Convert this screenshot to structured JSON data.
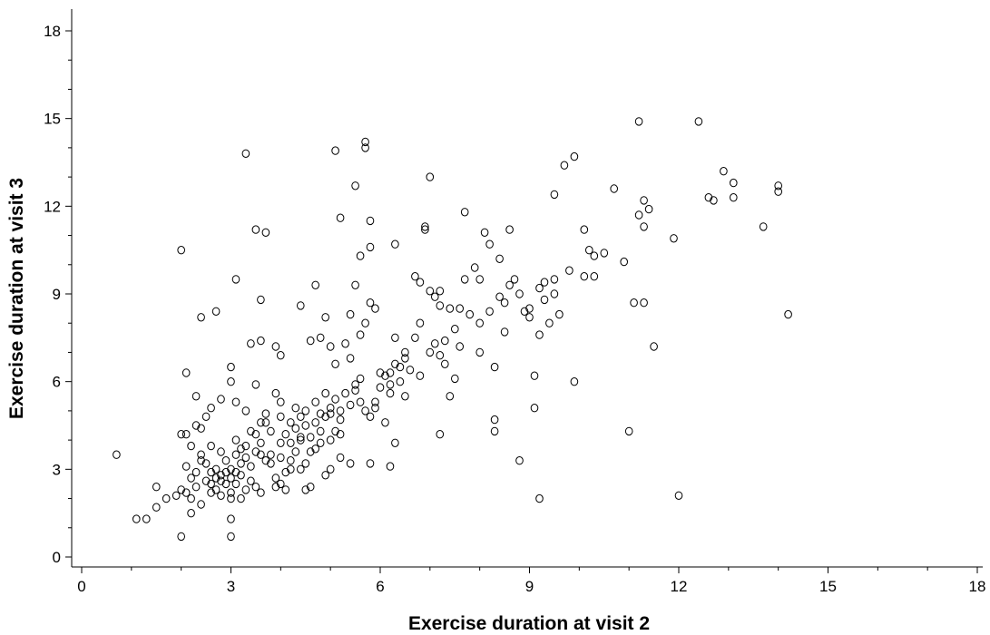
{
  "chart_data": {
    "type": "scatter",
    "title": "",
    "xlabel": "Exercise duration at visit 2",
    "ylabel": "Exercise duration at visit 3",
    "xlim": [
      0,
      18
    ],
    "ylim": [
      0,
      18
    ],
    "x_ticks": [
      0,
      3,
      6,
      9,
      12,
      15,
      18
    ],
    "y_ticks": [
      0,
      3,
      6,
      9,
      12,
      15,
      18
    ],
    "x_tick_labels": [
      "0",
      "3",
      "6",
      "9",
      "12",
      "15",
      "18"
    ],
    "y_tick_labels": [
      "0",
      "3",
      "6",
      "9",
      "12",
      "15",
      "18"
    ],
    "grid": false,
    "legend": "none",
    "marker": "open-circle",
    "marker_color": "#000000",
    "points": [
      [
        0.7,
        3.5
      ],
      [
        1.1,
        1.3
      ],
      [
        1.3,
        1.3
      ],
      [
        1.5,
        2.4
      ],
      [
        1.5,
        1.7
      ],
      [
        1.7,
        2.0
      ],
      [
        1.9,
        2.1
      ],
      [
        2.0,
        2.3
      ],
      [
        2.0,
        0.7
      ],
      [
        2.1,
        2.2
      ],
      [
        2.1,
        3.1
      ],
      [
        2.2,
        2.7
      ],
      [
        2.2,
        1.5
      ],
      [
        2.3,
        2.4
      ],
      [
        2.1,
        4.2
      ],
      [
        2.0,
        4.2
      ],
      [
        2.0,
        10.5
      ],
      [
        2.1,
        6.3
      ],
      [
        2.2,
        3.8
      ],
      [
        2.3,
        5.5
      ],
      [
        2.3,
        4.5
      ],
      [
        2.4,
        4.4
      ],
      [
        2.4,
        3.5
      ],
      [
        2.5,
        3.2
      ],
      [
        2.6,
        2.9
      ],
      [
        2.6,
        2.5
      ],
      [
        2.7,
        2.7
      ],
      [
        2.7,
        2.3
      ],
      [
        2.8,
        2.8
      ],
      [
        2.8,
        3.6
      ],
      [
        2.9,
        2.9
      ],
      [
        2.9,
        2.5
      ],
      [
        3.0,
        2.7
      ],
      [
        3.0,
        2.2
      ],
      [
        3.0,
        1.3
      ],
      [
        3.0,
        0.7
      ],
      [
        3.1,
        2.5
      ],
      [
        3.1,
        2.9
      ],
      [
        3.1,
        4.0
      ],
      [
        3.2,
        3.2
      ],
      [
        3.2,
        2.8
      ],
      [
        3.3,
        3.4
      ],
      [
        3.3,
        2.3
      ],
      [
        3.4,
        2.6
      ],
      [
        3.4,
        3.1
      ],
      [
        3.5,
        3.6
      ],
      [
        3.6,
        3.5
      ],
      [
        3.7,
        3.3
      ],
      [
        3.8,
        3.2
      ],
      [
        3.9,
        2.7
      ],
      [
        4.0,
        2.5
      ],
      [
        4.0,
        3.9
      ],
      [
        4.1,
        2.3
      ],
      [
        4.2,
        3.0
      ],
      [
        4.3,
        3.6
      ],
      [
        4.4,
        4.1
      ],
      [
        4.5,
        3.2
      ],
      [
        4.6,
        2.4
      ],
      [
        4.7,
        3.7
      ],
      [
        4.8,
        4.9
      ],
      [
        2.5,
        4.8
      ],
      [
        2.6,
        5.1
      ],
      [
        2.8,
        5.4
      ],
      [
        3.0,
        6.0
      ],
      [
        3.1,
        5.3
      ],
      [
        3.3,
        5.0
      ],
      [
        3.5,
        5.9
      ],
      [
        3.6,
        4.6
      ],
      [
        3.7,
        4.9
      ],
      [
        3.9,
        5.6
      ],
      [
        4.0,
        5.3
      ],
      [
        4.2,
        4.6
      ],
      [
        4.3,
        5.1
      ],
      [
        4.4,
        4.8
      ],
      [
        4.5,
        5.0
      ],
      [
        4.7,
        5.3
      ],
      [
        4.9,
        5.6
      ],
      [
        5.0,
        5.1
      ],
      [
        5.1,
        4.3
      ],
      [
        5.2,
        4.7
      ],
      [
        2.4,
        8.2
      ],
      [
        2.7,
        8.4
      ],
      [
        3.0,
        6.5
      ],
      [
        3.1,
        9.5
      ],
      [
        3.3,
        13.8
      ],
      [
        3.4,
        7.3
      ],
      [
        3.5,
        11.2
      ],
      [
        3.6,
        8.8
      ],
      [
        3.6,
        7.4
      ],
      [
        3.7,
        11.1
      ],
      [
        3.9,
        7.2
      ],
      [
        4.0,
        6.9
      ],
      [
        4.4,
        8.6
      ],
      [
        4.6,
        7.4
      ],
      [
        4.7,
        9.3
      ],
      [
        4.8,
        7.5
      ],
      [
        4.9,
        8.2
      ],
      [
        5.0,
        7.2
      ],
      [
        5.1,
        6.6
      ],
      [
        5.1,
        13.9
      ],
      [
        5.2,
        11.6
      ],
      [
        5.3,
        7.3
      ],
      [
        5.4,
        6.8
      ],
      [
        5.4,
        8.3
      ],
      [
        5.5,
        12.7
      ],
      [
        5.5,
        9.3
      ],
      [
        5.5,
        5.9
      ],
      [
        5.6,
        6.1
      ],
      [
        5.6,
        7.6
      ],
      [
        5.7,
        14.0
      ],
      [
        5.7,
        14.2
      ],
      [
        5.8,
        8.7
      ],
      [
        5.8,
        11.5
      ],
      [
        5.8,
        10.6
      ],
      [
        5.6,
        10.3
      ],
      [
        5.7,
        8.0
      ],
      [
        5.9,
        8.5
      ],
      [
        5.9,
        5.3
      ],
      [
        6.0,
        6.3
      ],
      [
        6.1,
        4.6
      ],
      [
        6.2,
        5.6
      ],
      [
        6.2,
        6.3
      ],
      [
        6.3,
        7.5
      ],
      [
        6.3,
        10.7
      ],
      [
        6.4,
        6.5
      ],
      [
        6.5,
        5.5
      ],
      [
        6.5,
        6.8
      ],
      [
        6.6,
        6.4
      ],
      [
        6.7,
        7.5
      ],
      [
        6.7,
        9.6
      ],
      [
        6.8,
        9.4
      ],
      [
        6.8,
        8.0
      ],
      [
        6.9,
        11.2
      ],
      [
        6.9,
        11.3
      ],
      [
        7.0,
        9.1
      ],
      [
        7.0,
        13.0
      ],
      [
        7.1,
        7.3
      ],
      [
        7.1,
        8.9
      ],
      [
        7.2,
        8.6
      ],
      [
        7.2,
        9.1
      ],
      [
        7.3,
        6.6
      ],
      [
        7.3,
        7.4
      ],
      [
        7.4,
        5.5
      ],
      [
        7.4,
        8.5
      ],
      [
        7.5,
        6.1
      ],
      [
        7.6,
        8.5
      ],
      [
        7.7,
        9.5
      ],
      [
        7.7,
        11.8
      ],
      [
        7.8,
        8.3
      ],
      [
        7.9,
        9.9
      ],
      [
        8.0,
        7.0
      ],
      [
        8.0,
        9.5
      ],
      [
        8.1,
        11.1
      ],
      [
        8.2,
        8.4
      ],
      [
        8.2,
        10.7
      ],
      [
        8.3,
        6.5
      ],
      [
        8.3,
        4.7
      ],
      [
        8.3,
        4.3
      ],
      [
        8.4,
        10.2
      ],
      [
        8.5,
        8.7
      ],
      [
        8.6,
        11.2
      ],
      [
        8.6,
        9.3
      ],
      [
        8.7,
        9.5
      ],
      [
        8.8,
        9.0
      ],
      [
        8.9,
        8.4
      ],
      [
        9.0,
        8.2
      ],
      [
        9.1,
        5.1
      ],
      [
        9.1,
        6.2
      ],
      [
        9.2,
        7.6
      ],
      [
        9.2,
        9.2
      ],
      [
        9.3,
        8.8
      ],
      [
        9.3,
        9.4
      ],
      [
        9.4,
        8.0
      ],
      [
        9.5,
        9.5
      ],
      [
        9.5,
        12.4
      ],
      [
        9.6,
        8.3
      ],
      [
        9.7,
        13.4
      ],
      [
        9.8,
        9.8
      ],
      [
        9.9,
        13.7
      ],
      [
        9.9,
        6.0
      ],
      [
        10.1,
        9.6
      ],
      [
        10.1,
        11.2
      ],
      [
        10.2,
        10.5
      ],
      [
        10.3,
        9.6
      ],
      [
        10.3,
        10.3
      ],
      [
        10.5,
        10.4
      ],
      [
        10.7,
        12.6
      ],
      [
        10.9,
        10.1
      ],
      [
        11.0,
        4.3
      ],
      [
        11.1,
        8.7
      ],
      [
        11.2,
        11.7
      ],
      [
        11.2,
        14.9
      ],
      [
        11.3,
        12.2
      ],
      [
        11.3,
        11.3
      ],
      [
        11.3,
        8.7
      ],
      [
        11.4,
        11.9
      ],
      [
        11.5,
        7.2
      ],
      [
        11.9,
        10.9
      ],
      [
        12.0,
        2.1
      ],
      [
        12.4,
        14.9
      ],
      [
        12.6,
        12.3
      ],
      [
        12.7,
        12.2
      ],
      [
        12.9,
        13.2
      ],
      [
        13.1,
        12.8
      ],
      [
        13.1,
        12.3
      ],
      [
        13.7,
        11.3
      ],
      [
        14.0,
        12.7
      ],
      [
        14.0,
        12.5
      ],
      [
        14.2,
        8.3
      ],
      [
        9.2,
        2.0
      ],
      [
        8.8,
        3.3
      ],
      [
        7.2,
        4.2
      ],
      [
        6.3,
        3.9
      ],
      [
        6.2,
        3.1
      ],
      [
        5.8,
        3.2
      ],
      [
        5.4,
        3.2
      ],
      [
        5.2,
        3.4
      ],
      [
        5.0,
        3.0
      ],
      [
        4.9,
        2.8
      ],
      [
        4.5,
        2.3
      ],
      [
        4.1,
        2.9
      ],
      [
        3.9,
        2.4
      ],
      [
        3.6,
        2.2
      ],
      [
        3.5,
        2.4
      ],
      [
        3.2,
        2.0
      ],
      [
        3.0,
        2.0
      ],
      [
        2.8,
        2.1
      ],
      [
        2.6,
        2.2
      ],
      [
        2.4,
        1.8
      ],
      [
        2.2,
        2.0
      ],
      [
        3.3,
        3.8
      ],
      [
        3.5,
        4.2
      ],
      [
        3.7,
        4.6
      ],
      [
        3.8,
        4.3
      ],
      [
        4.0,
        4.8
      ],
      [
        4.1,
        4.2
      ],
      [
        4.2,
        3.9
      ],
      [
        4.3,
        4.4
      ],
      [
        4.4,
        4.0
      ],
      [
        4.5,
        4.5
      ],
      [
        4.6,
        4.1
      ],
      [
        4.7,
        4.6
      ],
      [
        4.8,
        4.3
      ],
      [
        4.9,
        4.8
      ],
      [
        5.0,
        4.9
      ],
      [
        5.1,
        5.4
      ],
      [
        5.2,
        5.0
      ],
      [
        5.3,
        5.6
      ],
      [
        5.4,
        5.2
      ],
      [
        5.5,
        5.7
      ],
      [
        5.6,
        5.3
      ],
      [
        5.7,
        5.0
      ],
      [
        5.8,
        4.8
      ],
      [
        5.9,
        5.1
      ],
      [
        6.0,
        5.8
      ],
      [
        6.1,
        6.2
      ],
      [
        6.2,
        5.9
      ],
      [
        6.3,
        6.6
      ],
      [
        6.4,
        6.0
      ],
      [
        6.5,
        7.0
      ],
      [
        2.3,
        2.9
      ],
      [
        2.4,
        3.3
      ],
      [
        2.5,
        2.6
      ],
      [
        2.6,
        3.8
      ],
      [
        2.7,
        3.0
      ],
      [
        2.8,
        2.6
      ],
      [
        2.9,
        3.3
      ],
      [
        3.0,
        3.0
      ],
      [
        3.1,
        3.5
      ],
      [
        3.2,
        3.7
      ],
      [
        3.4,
        4.3
      ],
      [
        3.6,
        3.9
      ],
      [
        3.8,
        3.5
      ],
      [
        4.0,
        3.4
      ],
      [
        4.2,
        3.3
      ],
      [
        4.4,
        3.0
      ],
      [
        4.6,
        3.6
      ],
      [
        4.8,
        3.9
      ],
      [
        5.0,
        4.0
      ],
      [
        5.2,
        4.2
      ],
      [
        7.0,
        7.0
      ],
      [
        7.5,
        7.8
      ],
      [
        8.0,
        8.0
      ],
      [
        8.5,
        7.7
      ],
      [
        9.0,
        8.5
      ],
      [
        9.5,
        9.0
      ],
      [
        6.8,
        6.2
      ],
      [
        7.2,
        6.9
      ],
      [
        7.6,
        7.2
      ],
      [
        8.4,
        8.9
      ]
    ]
  }
}
